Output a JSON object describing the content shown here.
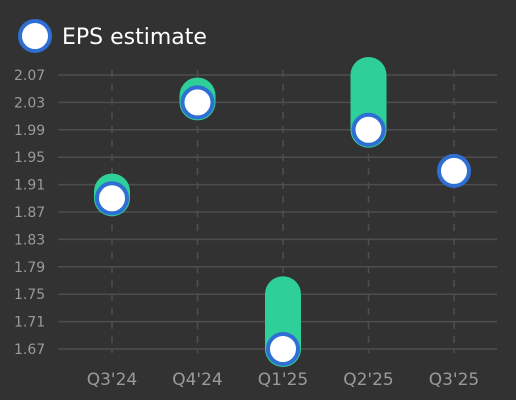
{
  "chart_data": {
    "type": "scatter",
    "legend": {
      "label": "EPS estimate",
      "position": "top-left"
    },
    "categories": [
      "Q3'24",
      "Q4'24",
      "Q1'25",
      "Q2'25",
      "Q3'25"
    ],
    "y_ticks": [
      "1.67",
      "1.71",
      "1.75",
      "1.79",
      "1.83",
      "1.87",
      "1.91",
      "1.95",
      "1.99",
      "2.03",
      "2.07"
    ],
    "ylim": [
      1.67,
      2.07
    ],
    "estimate": [
      1.89,
      2.03,
      1.67,
      1.99,
      1.93
    ],
    "range_top": [
      1.9,
      2.04,
      1.75,
      2.07,
      null
    ],
    "colors": {
      "background": "#323232",
      "range_bar": "#2ecf98",
      "marker_fill": "#ffffff",
      "marker_stroke": "#2f6fd4",
      "grid": "#4e4e4e",
      "tick_text": "#9a9a9a"
    },
    "grid": true
  }
}
